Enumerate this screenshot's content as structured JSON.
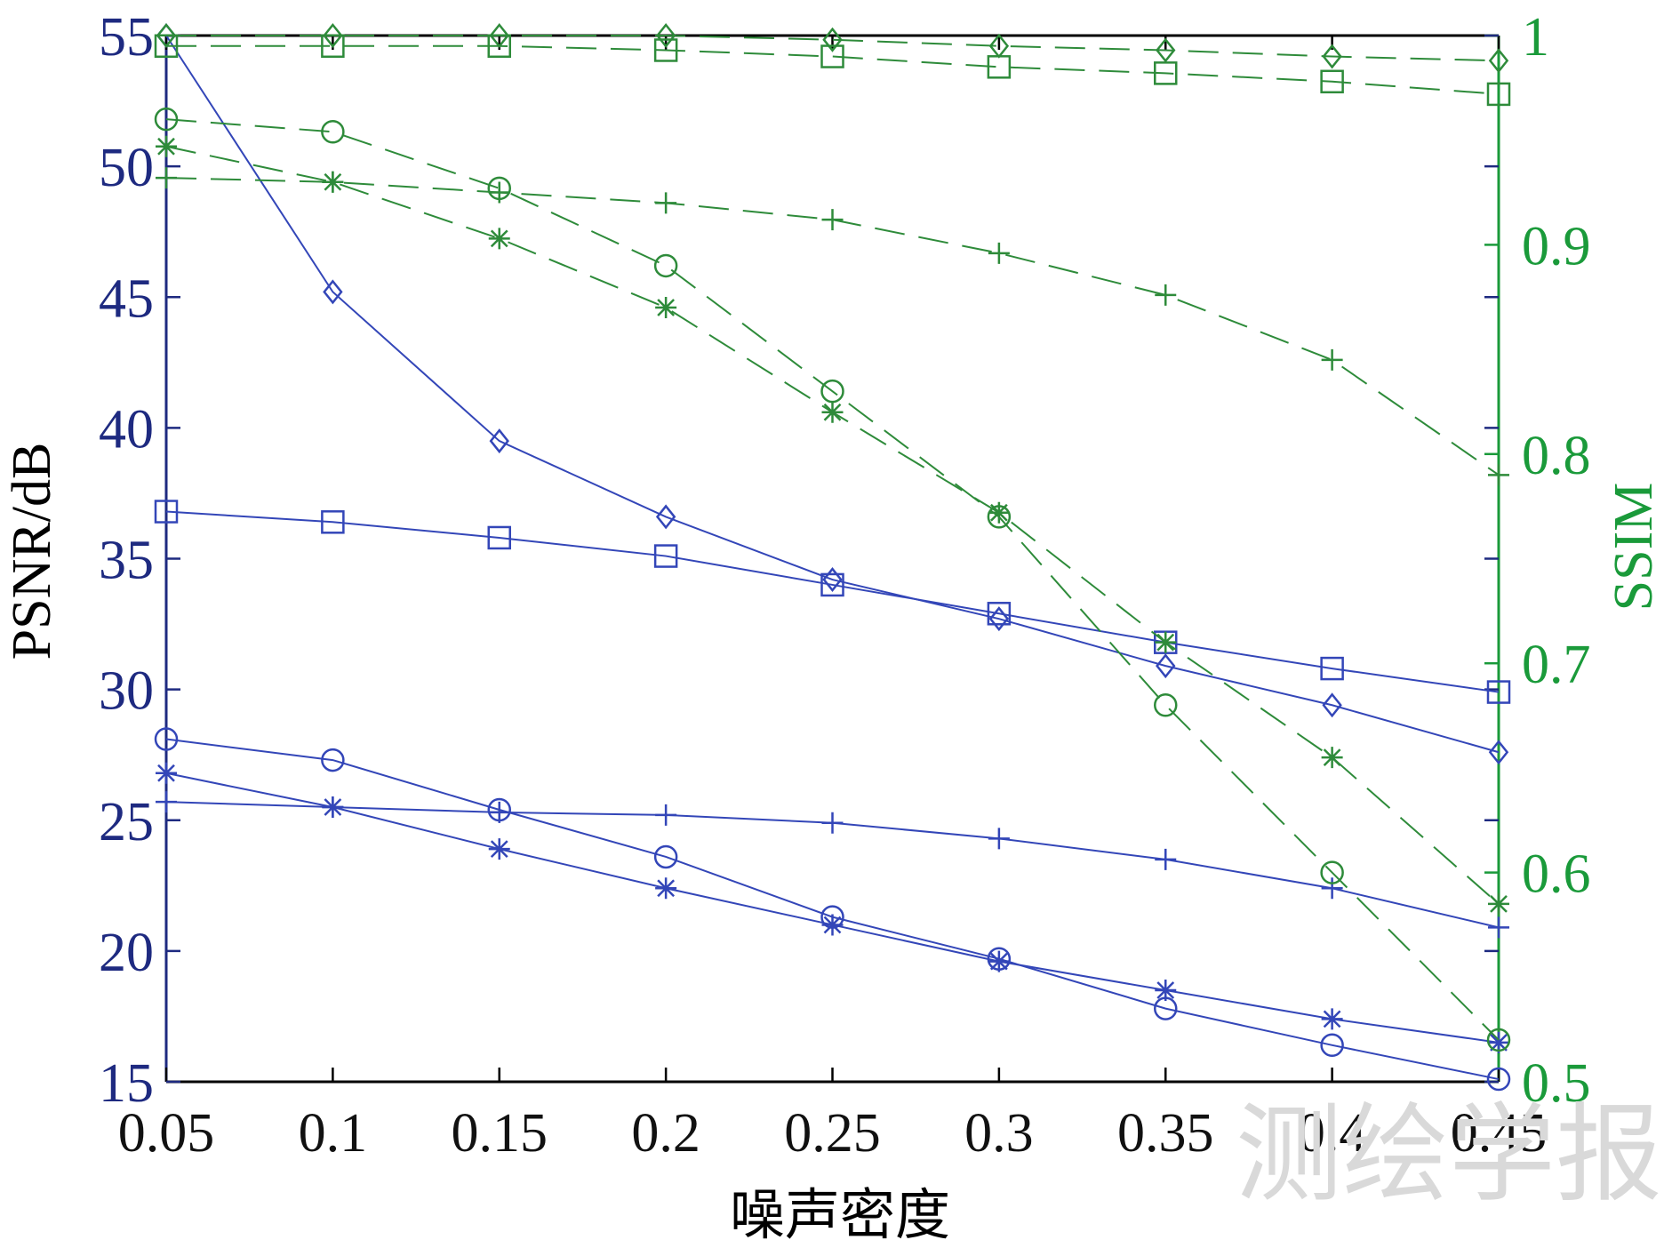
{
  "chart_data": {
    "type": "line",
    "title": "",
    "xlabel": "噪声密度",
    "ylabel_left": "PSNR/dB",
    "ylabel_right": "SSIM",
    "x": [
      0.05,
      0.1,
      0.15,
      0.2,
      0.25,
      0.3,
      0.35,
      0.4,
      0.45
    ],
    "x_tick_labels": [
      "0.05",
      "0.1",
      "0.15",
      "0.2",
      "0.25",
      "0.3",
      "0.35",
      "0.4",
      "0.45"
    ],
    "ylim_left": [
      15,
      55
    ],
    "left_tick_values": [
      15,
      20,
      25,
      30,
      35,
      40,
      45,
      50,
      55
    ],
    "left_tick_labels": [
      "15",
      "20",
      "25",
      "30",
      "35",
      "40",
      "45",
      "50",
      "55"
    ],
    "ylim_right": [
      0.5,
      1.0
    ],
    "right_tick_values": [
      0.5,
      0.6,
      0.7,
      0.8,
      0.9,
      1.0
    ],
    "right_tick_labels": [
      "0.5",
      "0.6",
      "0.7",
      "0.8",
      "0.9",
      "1"
    ],
    "grid": false,
    "legend": "none",
    "colors": {
      "psnr": "#3346b8",
      "ssim": "#2e8b3a",
      "axis_left": "#1e2a80",
      "axis_right": "#1a9a3a"
    },
    "series": [
      {
        "axis": "left",
        "style": "solid",
        "marker": "diamond",
        "values": [
          55.0,
          45.2,
          39.5,
          36.6,
          34.2,
          32.7,
          30.9,
          29.4,
          27.6
        ]
      },
      {
        "axis": "left",
        "style": "solid",
        "marker": "square",
        "values": [
          36.8,
          36.4,
          35.8,
          35.1,
          34.0,
          32.9,
          31.8,
          30.8,
          29.9
        ]
      },
      {
        "axis": "left",
        "style": "solid",
        "marker": "circle",
        "values": [
          28.1,
          27.3,
          25.4,
          23.6,
          21.3,
          19.7,
          17.8,
          16.4,
          15.1
        ]
      },
      {
        "axis": "left",
        "style": "solid",
        "marker": "star",
        "values": [
          26.8,
          25.5,
          23.9,
          22.4,
          21.0,
          19.6,
          18.5,
          17.4,
          16.5
        ]
      },
      {
        "axis": "left",
        "style": "solid",
        "marker": "plus",
        "values": [
          25.7,
          25.5,
          25.3,
          25.2,
          24.9,
          24.3,
          23.5,
          22.4,
          20.9
        ]
      },
      {
        "axis": "right",
        "style": "dashed",
        "marker": "diamond",
        "values": [
          1.0,
          1.0,
          1.0,
          1.0,
          0.998,
          0.995,
          0.993,
          0.99,
          0.988
        ]
      },
      {
        "axis": "right",
        "style": "dashed",
        "marker": "square",
        "values": [
          0.995,
          0.995,
          0.995,
          0.993,
          0.99,
          0.985,
          0.982,
          0.978,
          0.972
        ]
      },
      {
        "axis": "right",
        "style": "dashed",
        "marker": "circle",
        "values": [
          0.96,
          0.954,
          0.927,
          0.89,
          0.83,
          0.77,
          0.68,
          0.6,
          0.52
        ]
      },
      {
        "axis": "right",
        "style": "dashed",
        "marker": "plus",
        "values": [
          0.932,
          0.93,
          0.925,
          0.92,
          0.912,
          0.896,
          0.876,
          0.845,
          0.79
        ]
      },
      {
        "axis": "right",
        "style": "dashed",
        "marker": "star",
        "values": [
          0.947,
          0.93,
          0.903,
          0.87,
          0.82,
          0.772,
          0.71,
          0.655,
          0.585
        ]
      }
    ],
    "watermark": "测绘学报"
  }
}
